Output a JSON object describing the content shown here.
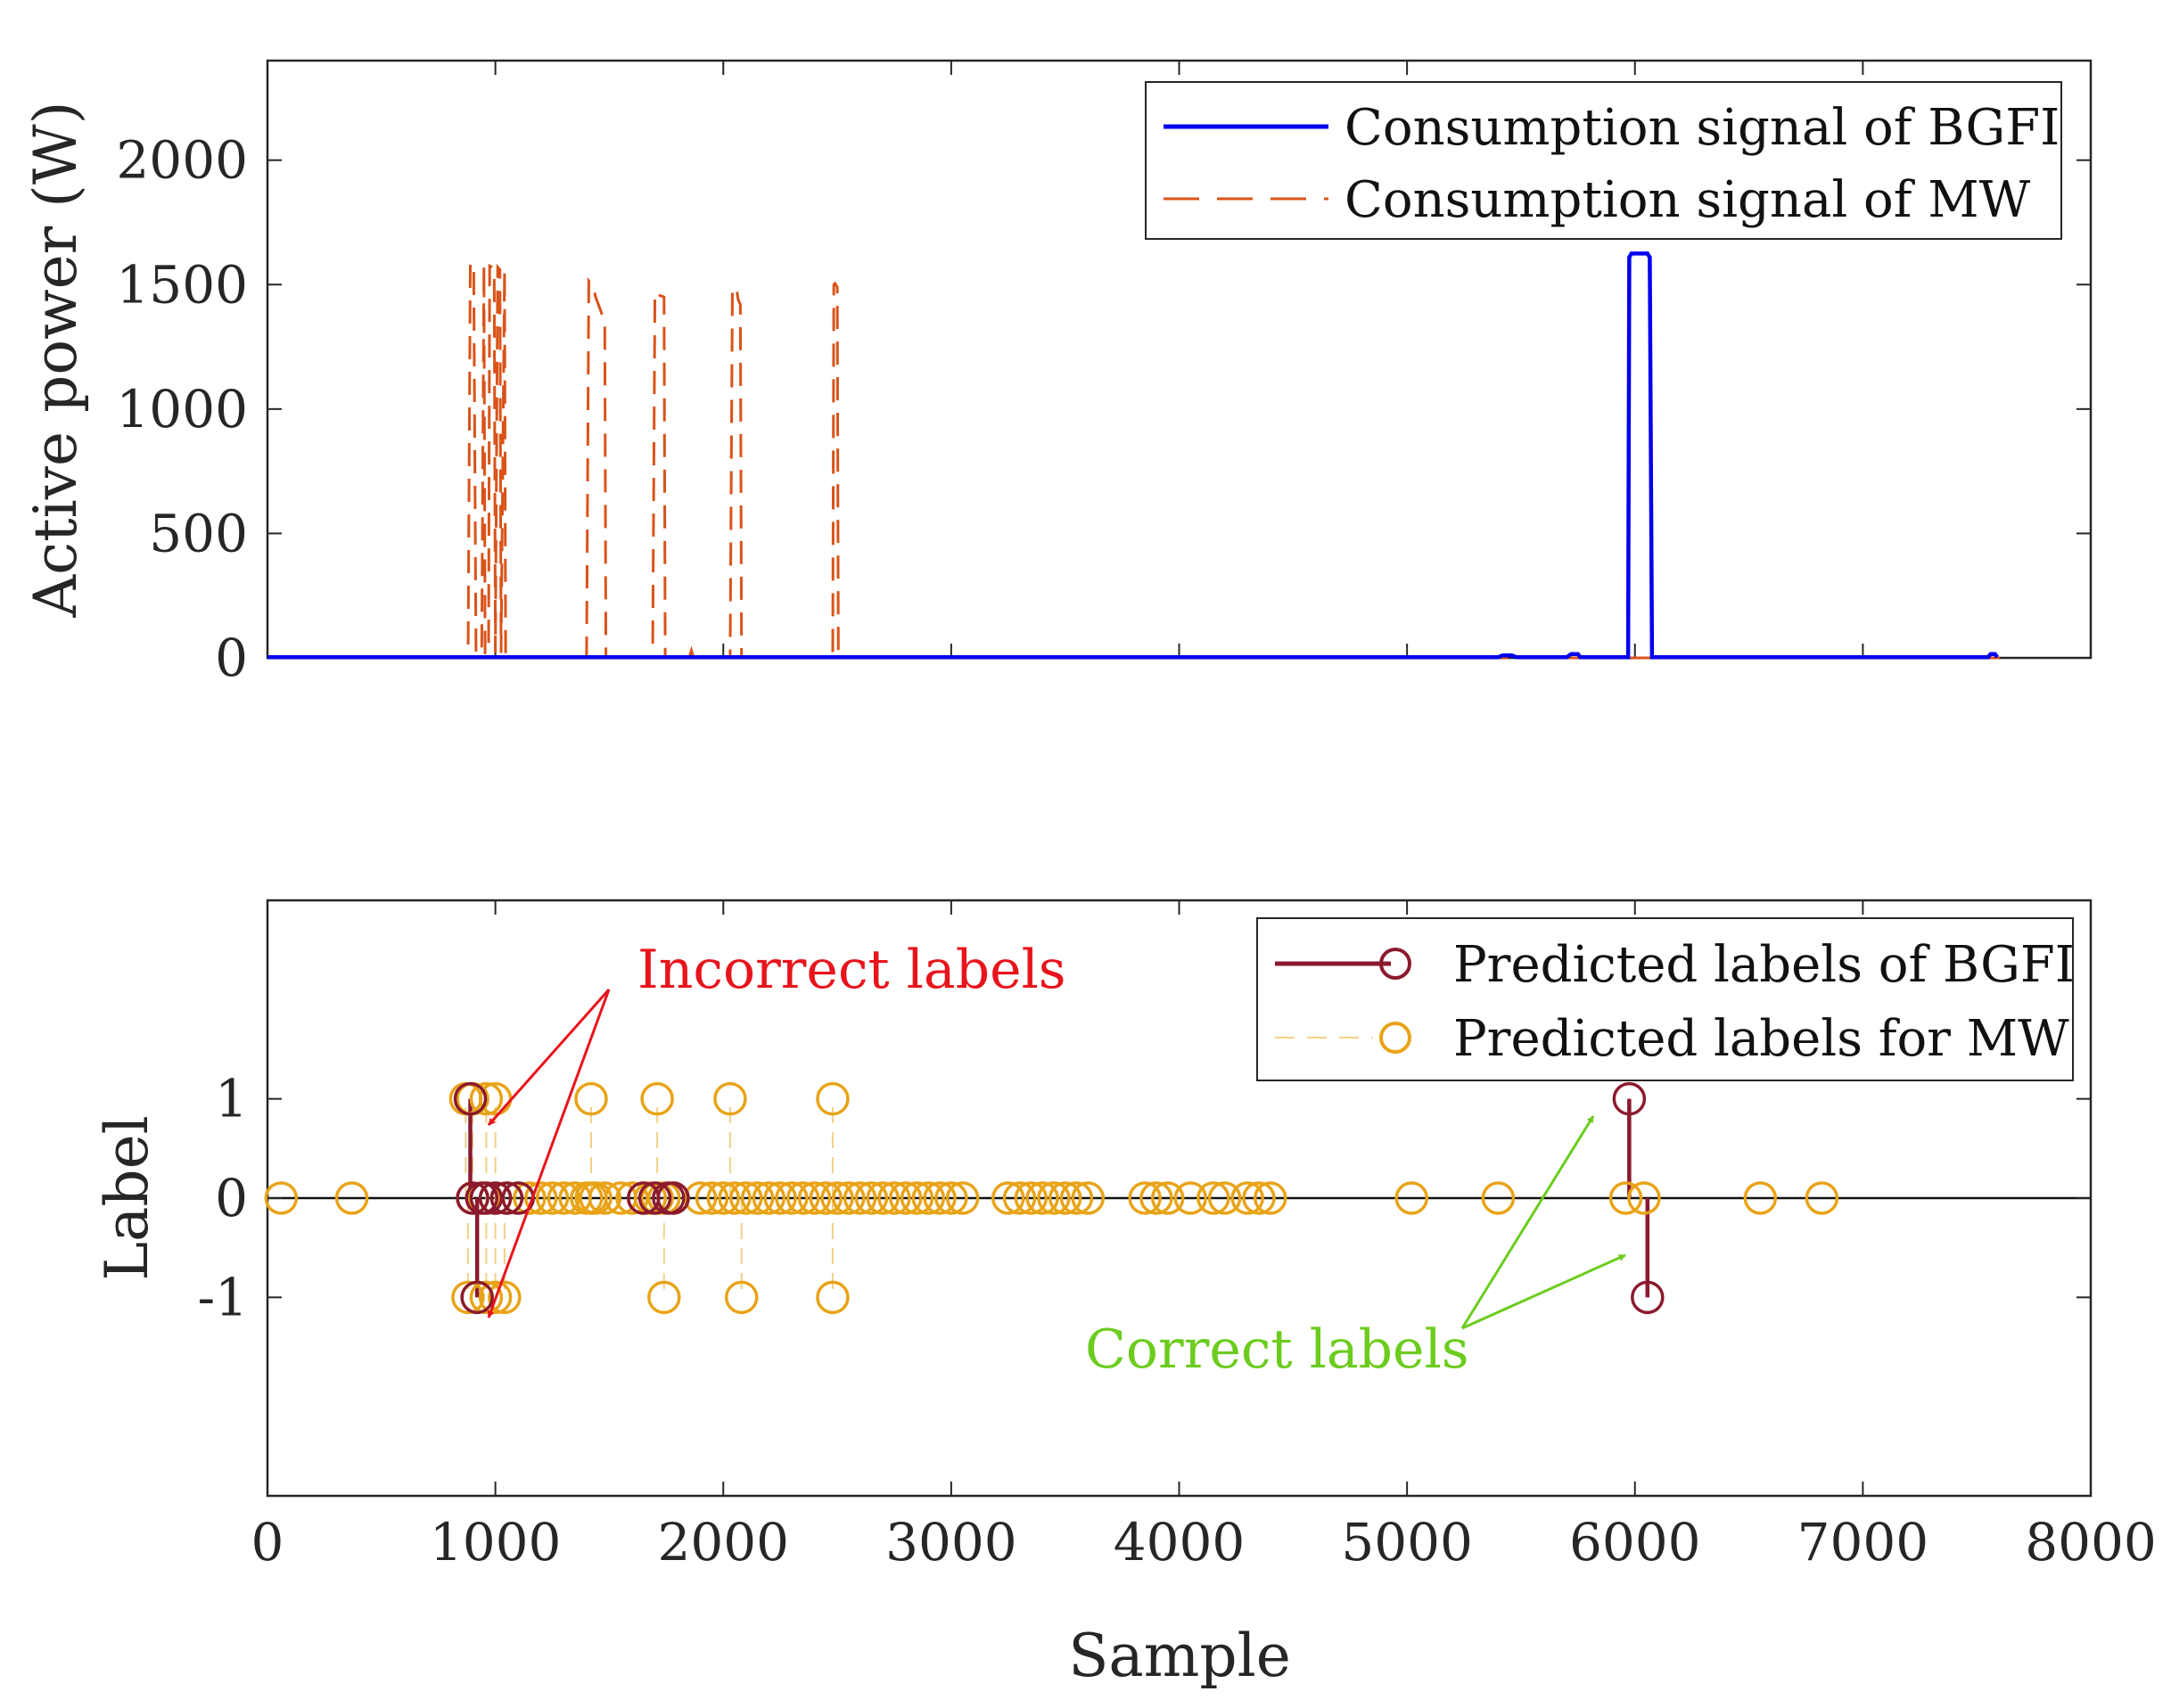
{
  "chart_data": [
    {
      "type": "line",
      "xlabel": "",
      "ylabel": "Active power (W)",
      "xlim": [
        0,
        8000
      ],
      "ylim": [
        0,
        2400
      ],
      "yticks": [
        0,
        500,
        1000,
        1500,
        2000
      ],
      "grid": false,
      "legend_position": "top-right",
      "series": [
        {
          "name": "Consumption signal of BGFI",
          "style": "solid",
          "color": "#0000ee",
          "x": [
            0,
            5400,
            5420,
            5460,
            5480,
            5700,
            5720,
            5750,
            5760,
            5970,
            5975,
            5985,
            6055,
            6065,
            6075,
            7550,
            7560,
            7580,
            7590
          ],
          "y": [
            3,
            3,
            10,
            10,
            3,
            3,
            15,
            15,
            3,
            3,
            1610,
            1625,
            1625,
            1610,
            3,
            3,
            15,
            15,
            3
          ]
        },
        {
          "name": "Consumption signal of MW",
          "style": "dashed",
          "color": "#d95319",
          "x": [
            0,
            880,
            890,
            900,
            905,
            915,
            940,
            950,
            955,
            970,
            975,
            985,
            995,
            1000,
            1010,
            1020,
            1025,
            1040,
            1045,
            1400,
            1410,
            1430,
            1440,
            1460,
            1480,
            1485,
            1690,
            1700,
            1710,
            1740,
            1745,
            1850,
            1860,
            1870,
            2030,
            2040,
            2050,
            2060,
            2065,
            2075,
            2080,
            2480,
            2485,
            2490,
            2500,
            2505,
            7600
          ],
          "y": [
            0,
            0,
            1585,
            1585,
            1580,
            20,
            20,
            1580,
            20,
            20,
            1575,
            1570,
            1560,
            20,
            1570,
            1560,
            20,
            1560,
            0,
            0,
            1515,
            1490,
            1450,
            1400,
            1350,
            0,
            0,
            1470,
            1460,
            1450,
            0,
            0,
            30,
            0,
            0,
            1490,
            1480,
            1470,
            1440,
            1420,
            0,
            0,
            1500,
            1505,
            1490,
            0,
            0
          ]
        }
      ]
    },
    {
      "type": "scatter",
      "xlabel": "Sample",
      "ylabel": "Label",
      "xlim": [
        0,
        8000
      ],
      "ylim": [
        -3,
        3
      ],
      "xticks": [
        0,
        1000,
        2000,
        3000,
        4000,
        5000,
        6000,
        7000,
        8000
      ],
      "yticks": [
        -1,
        0,
        1
      ],
      "grid": false,
      "legend_position": "top-right",
      "series": [
        {
          "name": "Predicted labels of BGFI",
          "style": "stem",
          "color": "#8b1a2e",
          "x": [
            890,
            900,
            920,
            940,
            960,
            1000,
            1050,
            1100,
            1650,
            1700,
            1760,
            1780,
            5975,
            6055
          ],
          "y": [
            1,
            0,
            -1,
            0,
            0,
            0,
            0,
            0,
            0,
            0,
            0,
            0,
            1,
            -1
          ]
        },
        {
          "name": "Predicted labels for MW",
          "style": "stem",
          "color": "#e8a317",
          "x": [
            60,
            370,
            870,
            900,
            960,
            1000,
            880,
            920,
            960,
            1000,
            1040,
            900,
            950,
            1000,
            1050,
            1100,
            1150,
            1200,
            1250,
            1300,
            1350,
            1400,
            1420,
            1440,
            1480,
            1550,
            1600,
            1650,
            1680,
            1710,
            1740,
            1780,
            1900,
            1950,
            2000,
            2050,
            2100,
            2150,
            2200,
            2250,
            2300,
            2350,
            2400,
            2450,
            2500,
            2550,
            2600,
            2650,
            2700,
            2750,
            2800,
            2850,
            2900,
            2950,
            3000,
            3050,
            3250,
            3300,
            3350,
            3400,
            3450,
            3500,
            3550,
            3600,
            3850,
            3900,
            3950,
            4050,
            4150,
            4200,
            4300,
            4350,
            4400,
            5020,
            5400,
            5960,
            6040,
            6550,
            6820,
            1420,
            1710,
            2030,
            2480,
            1740,
            2080,
            2480
          ],
          "y": [
            0,
            0,
            1,
            1,
            1,
            1,
            -1,
            -1,
            -1,
            -1,
            -1,
            0,
            0,
            0,
            0,
            0,
            0,
            0,
            0,
            0,
            0,
            0,
            0,
            0,
            0,
            0,
            0,
            0,
            0,
            0,
            0,
            0,
            0,
            0,
            0,
            0,
            0,
            0,
            0,
            0,
            0,
            0,
            0,
            0,
            0,
            0,
            0,
            0,
            0,
            0,
            0,
            0,
            0,
            0,
            0,
            0,
            0,
            0,
            0,
            0,
            0,
            0,
            0,
            0,
            0,
            0,
            0,
            0,
            0,
            0,
            0,
            0,
            0,
            0,
            0,
            0,
            0,
            0,
            0,
            1,
            1,
            1,
            1,
            -1,
            -1,
            -1
          ]
        }
      ],
      "annotations": [
        {
          "text": "Incorrect labels",
          "color": "#e8141c",
          "points_to": [
            [
              950,
              1
            ],
            [
              950,
              -1
            ]
          ]
        },
        {
          "text": "Correct labels",
          "color": "#6ccc1e",
          "points_to": [
            [
              5975,
              0.75
            ],
            [
              5975,
              -0.55
            ]
          ]
        }
      ]
    }
  ]
}
